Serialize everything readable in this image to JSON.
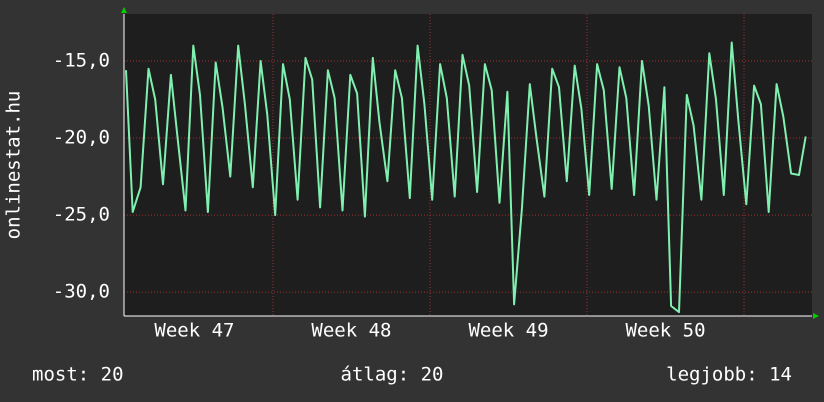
{
  "chart_data": {
    "type": "line",
    "y_label": "onlinestat.hu",
    "x": [
      0.45,
      0.75,
      1.1,
      1.45,
      1.75,
      2.1,
      2.45,
      2.75,
      3.1,
      3.45,
      3.75,
      4.1,
      4.45,
      4.75,
      5.1,
      5.45,
      5.75,
      6.1,
      6.45,
      6.75,
      7.1,
      7.45,
      7.75,
      8.1,
      8.45,
      8.75,
      9.1,
      9.45,
      9.75,
      10.1,
      10.45,
      10.75,
      11.1,
      11.45,
      11.75,
      12.1,
      12.45,
      12.75,
      13.1,
      13.45,
      13.75,
      14.1,
      14.45,
      14.75,
      15.1,
      15.45,
      15.75,
      16.1,
      16.45,
      16.75,
      17.1,
      17.45,
      17.75,
      18.1,
      18.45,
      18.75,
      19.1,
      19.45,
      19.75,
      20.1,
      20.45,
      20.75,
      21.1,
      21.45,
      21.75,
      22.1,
      22.45,
      22.75,
      23.1,
      23.45,
      23.75,
      24.1,
      24.45,
      24.75,
      25.1,
      25.45,
      25.75,
      26.1,
      26.45,
      26.75,
      27.1,
      27.45,
      27.75,
      28.1,
      28.45,
      28.75,
      29.1,
      29.45,
      29.75,
      30.1,
      30.45,
      30.75
    ],
    "series": [
      {
        "color": "#80f0b0",
        "values": [
          -15.6,
          -24.8,
          -23.2,
          -15.5,
          -17.5,
          -23.0,
          -15.9,
          -20,
          -24.7,
          -14.0,
          -17.2,
          -24.8,
          -15.1,
          -18,
          -22.5,
          -14.0,
          -17.8,
          -23.2,
          -15.0,
          -18.5,
          -25.0,
          -15.2,
          -17.5,
          -24.0,
          -14.8,
          -16.2,
          -24.5,
          -15.6,
          -17.4,
          -24.7,
          -15.9,
          -17.1,
          -25.1,
          -14.8,
          -19,
          -22.8,
          -15.6,
          -17.4,
          -23.9,
          -14.0,
          -17.8,
          -24.0,
          -15.2,
          -17.4,
          -23.8,
          -14.6,
          -16.6,
          -23.5,
          -15.2,
          -16.9,
          -24.2,
          -17.0,
          -30.8,
          -24.6,
          -16.5,
          -20,
          -23.8,
          -15.5,
          -16.7,
          -22.8,
          -15.3,
          -18.1,
          -23.7,
          -15.2,
          -16.9,
          -23.3,
          -15.4,
          -17.4,
          -23.7,
          -15.0,
          -17.9,
          -24.0,
          -16.7,
          -30.9,
          -31.3,
          -17.2,
          -19.2,
          -24.0,
          -14.5,
          -17.5,
          -23.7,
          -13.8,
          -18.9,
          -24.3,
          -16.6,
          -17.8,
          -24.8,
          -16.5,
          -18.6,
          -22.3,
          -22.4,
          -19.9
        ]
      }
    ],
    "xlim": [
      0.36,
      31.03
    ],
    "xticks": [
      {
        "value": 3.5,
        "label": "Week 47"
      },
      {
        "value": 10.5,
        "label": "Week 48"
      },
      {
        "value": 17.5,
        "label": "Week 49"
      },
      {
        "value": 24.5,
        "label": "Week 50"
      }
    ],
    "x_grid": [
      7,
      14,
      21,
      28
    ],
    "ylim": [
      -31.55,
      -11.95
    ],
    "yticks": [
      {
        "value": -15,
        "label": "-15,0"
      },
      {
        "value": -20,
        "label": "-20,0"
      },
      {
        "value": -25,
        "label": "-25,0"
      },
      {
        "value": -30,
        "label": "-30,0"
      }
    ],
    "grid": true,
    "footer": {
      "current": "most: 20",
      "average": "átlag: 20",
      "best": "legjobb: 14"
    }
  }
}
